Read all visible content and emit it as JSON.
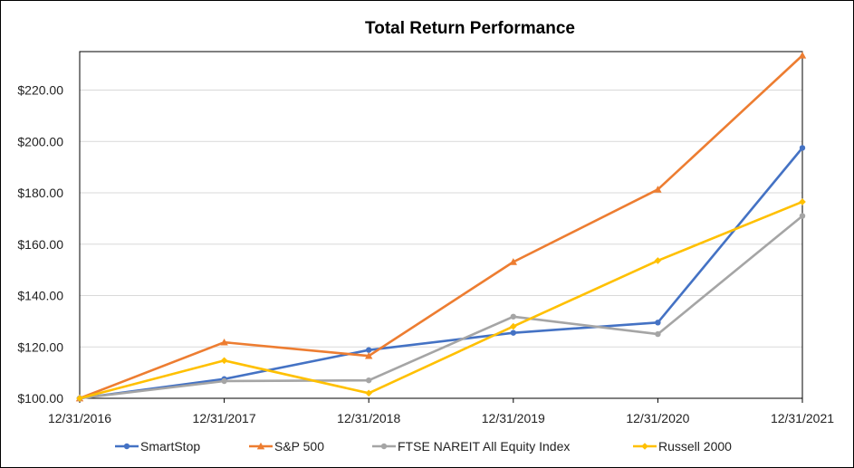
{
  "chart_data": {
    "type": "line",
    "title": "Total Return Performance",
    "xlabel": "",
    "ylabel": "",
    "categories": [
      "12/31/2016",
      "12/31/2017",
      "12/31/2018",
      "12/31/2019",
      "12/31/2020",
      "12/31/2021"
    ],
    "ylim": [
      100,
      235
    ],
    "yticks": [
      100,
      120,
      140,
      160,
      180,
      200,
      220
    ],
    "ytick_labels": [
      "$100.00",
      "$120.00",
      "$140.00",
      "$160.00",
      "$180.00",
      "$200.00",
      "$220.00"
    ],
    "grid": true,
    "legend_position": "bottom",
    "series": [
      {
        "name": "SmartStop",
        "color": "#4472C4",
        "marker": "circle",
        "values": [
          100,
          107.5,
          118.8,
          125.5,
          129.5,
          197.5
        ]
      },
      {
        "name": "S&P 500",
        "color": "#ED7D31",
        "marker": "triangle",
        "values": [
          100,
          121.8,
          116.5,
          153.1,
          181.3,
          233.5
        ]
      },
      {
        "name": "FTSE NAREIT All Equity Index",
        "color": "#A5A5A5",
        "marker": "circle",
        "values": [
          100,
          106.7,
          107.0,
          131.8,
          125.0,
          171.0
        ]
      },
      {
        "name": "Russell 2000",
        "color": "#FFC000",
        "marker": "diamond",
        "values": [
          100,
          114.7,
          102.0,
          128.0,
          153.6,
          176.5
        ]
      }
    ]
  }
}
